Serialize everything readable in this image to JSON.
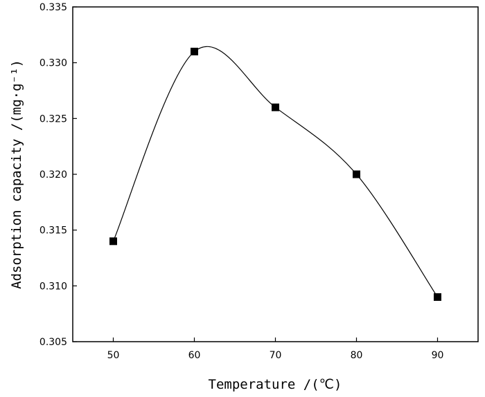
{
  "chart_data": {
    "type": "line",
    "title": "",
    "xlabel": "Temperature /(℃)",
    "ylabel": "Adsorption capacity /(mg·g⁻¹)",
    "x": [
      50,
      60,
      70,
      80,
      90
    ],
    "series": [
      {
        "values": [
          0.314,
          0.331,
          0.326,
          0.32,
          0.309
        ]
      }
    ],
    "xlim": [
      45,
      95
    ],
    "ylim": [
      0.305,
      0.335
    ],
    "xticks": [
      "50",
      "60",
      "70",
      "80",
      "90"
    ],
    "yticks": [
      "0.305",
      "0.310",
      "0.315",
      "0.320",
      "0.325",
      "0.330",
      "0.335"
    ],
    "marker": "square",
    "smooth": true,
    "grid": false,
    "legend": "none"
  }
}
